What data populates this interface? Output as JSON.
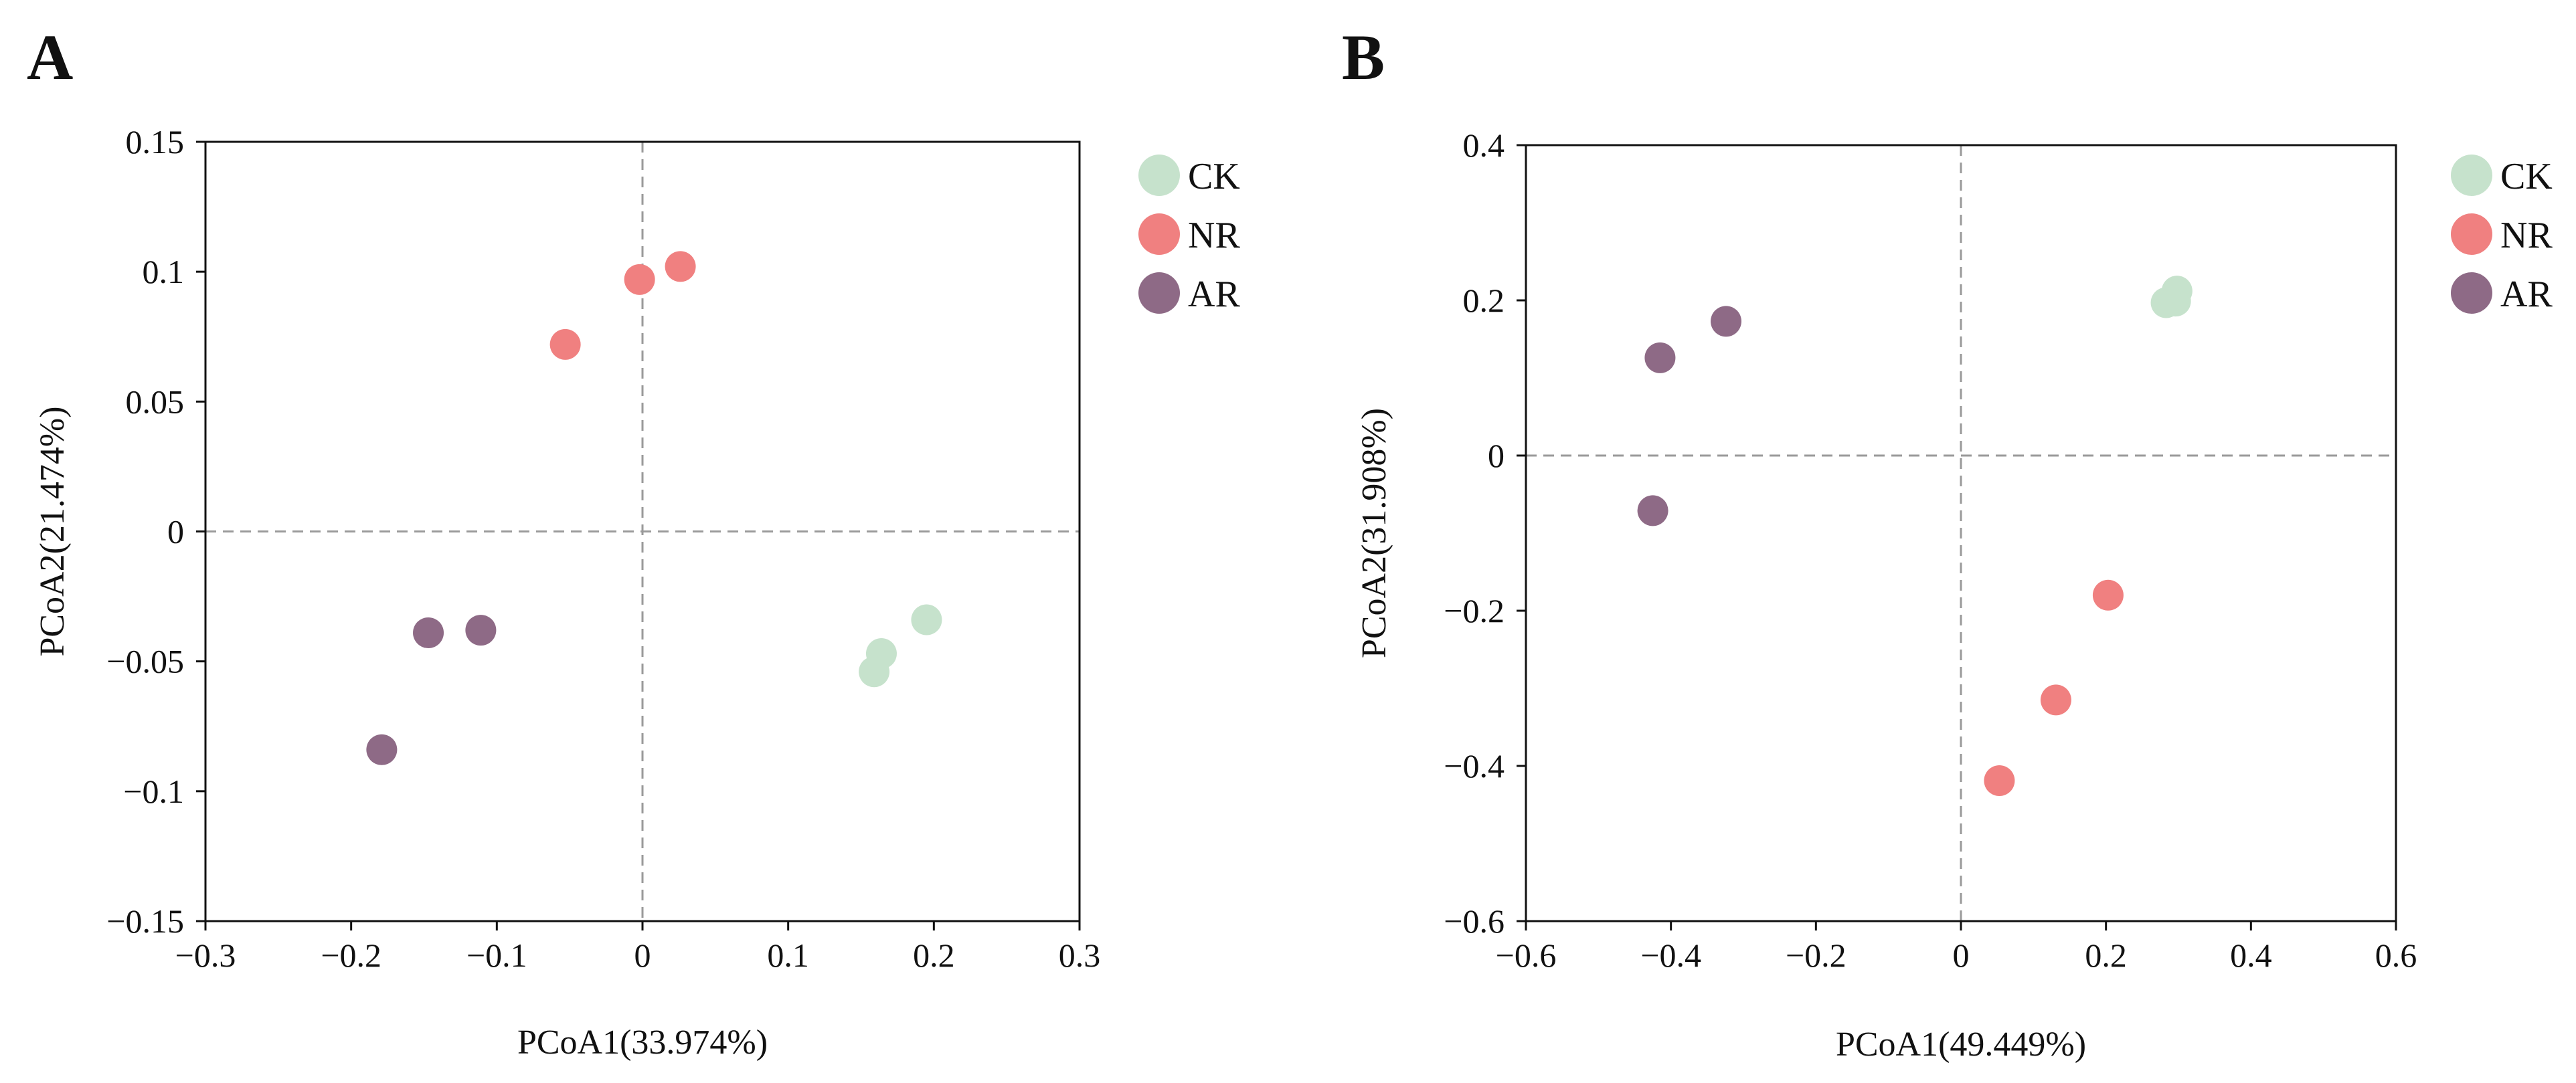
{
  "chart_data": [
    {
      "type": "scatter",
      "panel": "A",
      "xlabel": "PCoA1(33.974%)",
      "ylabel": "PCoA2(21.474%)",
      "xlim": [
        -0.3,
        0.3
      ],
      "ylim": [
        -0.15,
        0.15
      ],
      "xticks": [
        -0.3,
        -0.2,
        -0.1,
        0,
        0.1,
        0.2,
        0.3
      ],
      "xtick_labels": [
        "−0.3",
        "−0.2",
        "−0.1",
        "0",
        "0.1",
        "0.2",
        "0.3"
      ],
      "yticks": [
        0.15,
        0.1,
        0.05,
        0,
        -0.05,
        -0.1,
        -0.15
      ],
      "ytick_labels": [
        "0.15",
        "0.1",
        "0.05",
        "0",
        "−0.05",
        "−0.1",
        "−0.15"
      ],
      "legend_position": "right",
      "series": [
        {
          "name": "CK",
          "color": "#c6e2cc",
          "points": [
            [
              0.195,
              -0.034
            ],
            [
              0.164,
              -0.047
            ],
            [
              0.159,
              -0.054
            ]
          ]
        },
        {
          "name": "NR",
          "color": "#f08080",
          "points": [
            [
              0.026,
              0.102
            ],
            [
              -0.002,
              0.097
            ],
            [
              -0.053,
              0.072
            ]
          ]
        },
        {
          "name": "AR",
          "color": "#8e6a86",
          "points": [
            [
              -0.111,
              -0.038
            ],
            [
              -0.147,
              -0.039
            ],
            [
              -0.179,
              -0.084
            ]
          ]
        }
      ]
    },
    {
      "type": "scatter",
      "panel": "B",
      "xlabel": "PCoA1(49.449%)",
      "ylabel": "PCoA2(31.908%)",
      "xlim": [
        -0.6,
        0.6
      ],
      "ylim": [
        -0.6,
        0.4
      ],
      "xticks": [
        -0.6,
        -0.4,
        -0.2,
        0,
        0.2,
        0.4,
        0.6
      ],
      "xtick_labels": [
        "−0.6",
        "−0.4",
        "−0.2",
        "0",
        "0.2",
        "0.4",
        "0.6"
      ],
      "yticks": [
        0.4,
        0.2,
        0,
        -0.2,
        -0.4,
        -0.6
      ],
      "ytick_labels": [
        "0.4",
        "0.2",
        "0",
        "−0.2",
        "−0.4",
        "−0.6"
      ],
      "legend_position": "right",
      "series": [
        {
          "name": "CK",
          "color": "#c6e2cc",
          "points": [
            [
              0.298,
              0.212
            ],
            [
              0.296,
              0.199
            ],
            [
              0.283,
              0.197
            ]
          ]
        },
        {
          "name": "NR",
          "color": "#f08080",
          "points": [
            [
              0.203,
              -0.18
            ],
            [
              0.131,
              -0.315
            ],
            [
              0.053,
              -0.419
            ]
          ]
        },
        {
          "name": "AR",
          "color": "#8e6a86",
          "points": [
            [
              -0.324,
              0.173
            ],
            [
              -0.415,
              0.126
            ],
            [
              -0.425,
              -0.071
            ]
          ]
        }
      ]
    }
  ]
}
